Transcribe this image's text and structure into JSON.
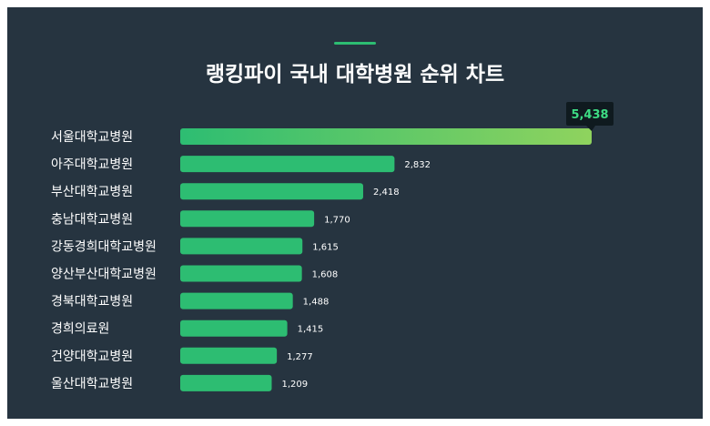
{
  "chart_data": {
    "type": "bar",
    "orientation": "horizontal",
    "title": "랭킹파이 국내 대학병원 순위 차트",
    "categories": [
      "서울대학교병원",
      "아주대학교병원",
      "부산대학교병원",
      "충남대학교병원",
      "강동경희대학교병원",
      "양산부산대학교병원",
      "경북대학교병원",
      "경희의료원",
      "건양대학교병원",
      "울산대학교병원"
    ],
    "values": [
      5438,
      2832,
      2418,
      1770,
      1615,
      1608,
      1488,
      1415,
      1277,
      1209
    ],
    "value_labels": [
      "5,438",
      "2,832",
      "2,418",
      "1,770",
      "1,615",
      "1,608",
      "1,488",
      "1,415",
      "1,277",
      "1,209"
    ],
    "xlim": [
      0,
      5438
    ],
    "grid": false,
    "legend": "none"
  },
  "colors": {
    "background": "#263440",
    "bar": "#2dbd72",
    "top_bar_start": "#2dbd72",
    "top_bar_end": "#8fd35e",
    "highlight_text": "#3ddc84",
    "tooltip_bg": "#0f1a1f"
  }
}
